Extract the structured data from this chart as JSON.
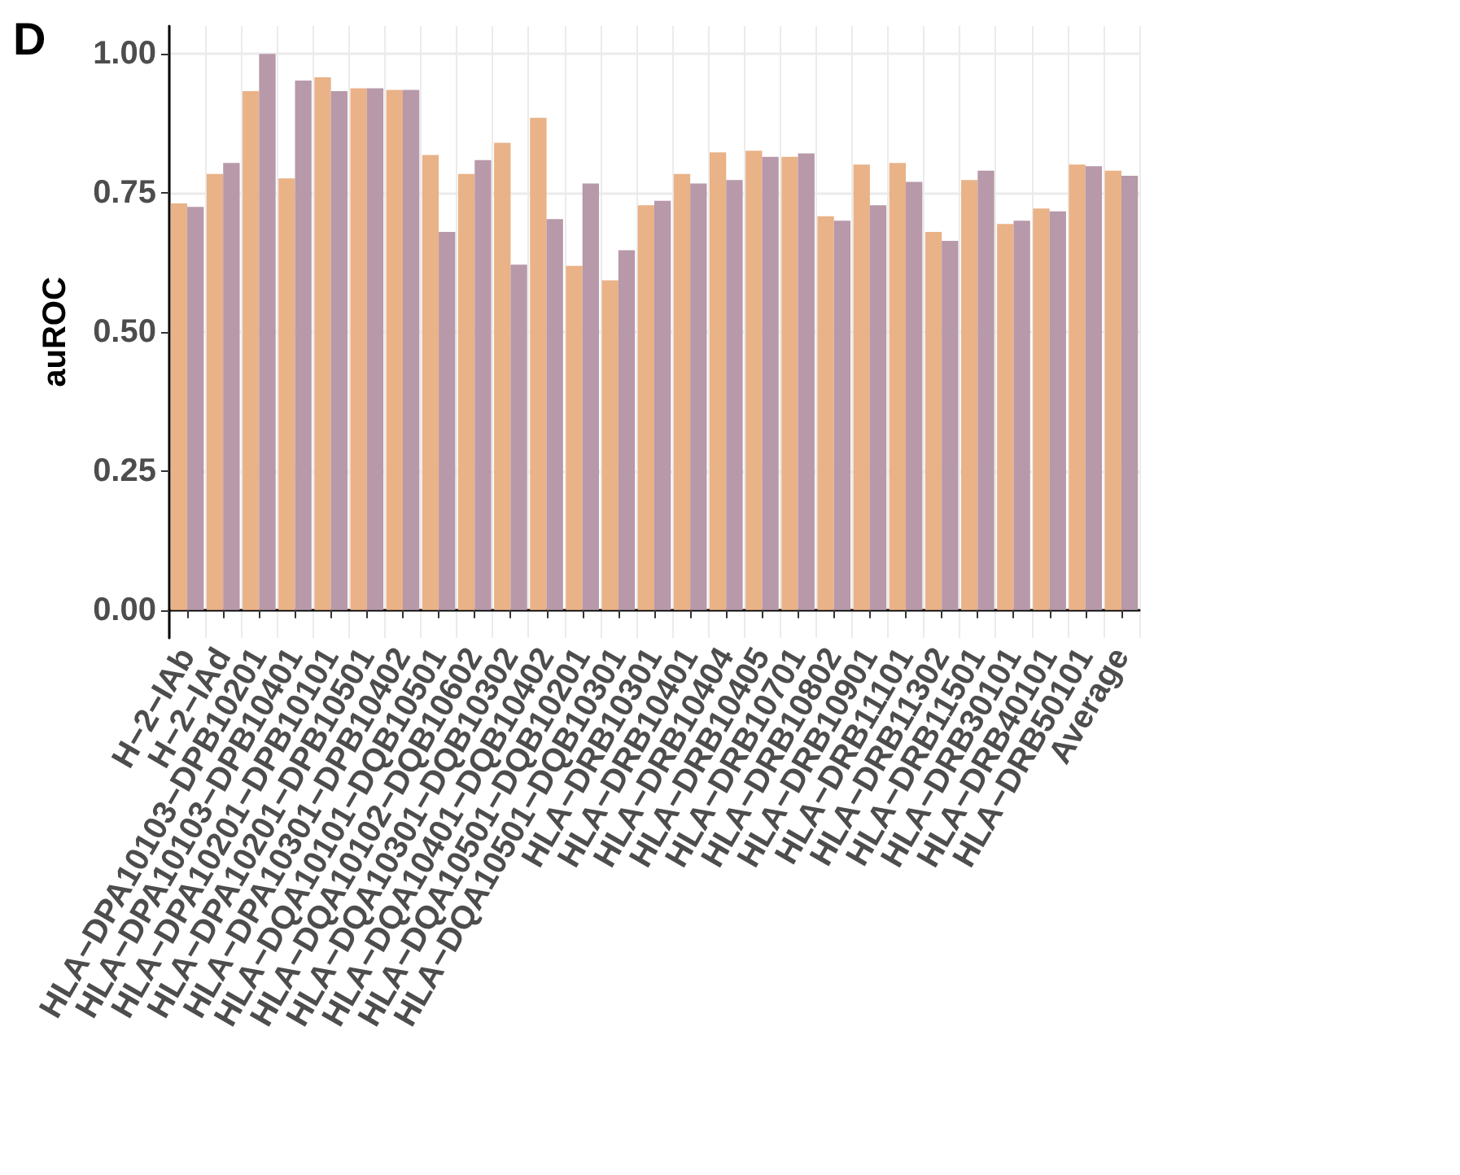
{
  "chart_data": {
    "type": "bar",
    "ylabel": "auROC",
    "annotations": [
      "D"
    ],
    "categories": [
      "H−2−IAb",
      "H−2−IAd",
      "HLA−DPA10103−DPB10201",
      "HLA−DPA10103−DPB10401",
      "HLA−DPA10201−DPB10101",
      "HLA−DPA10201−DPB10501",
      "HLA−DPA10301−DPB10402",
      "HLA−DQA10101−DQB10501",
      "HLA−DQA10102−DQB10602",
      "HLA−DQA10301−DQB10302",
      "HLA−DQA10401−DQB10402",
      "HLA−DQA10501−DQB10201",
      "HLA−DQA10501−DQB10301",
      "HLA−DRB10301",
      "HLA−DRB10401",
      "HLA−DRB10404",
      "HLA−DRB10405",
      "HLA−DRB10701",
      "HLA−DRB10802",
      "HLA−DRB10901",
      "HLA−DRB11101",
      "HLA−DRB11302",
      "HLA−DRB11501",
      "HLA−DRB30101",
      "HLA−DRB40101",
      "HLA−DRB50101",
      "Average"
    ],
    "series": [
      {
        "color": "#e9b287",
        "values": [
          0.731,
          0.784,
          0.933,
          0.776,
          0.958,
          0.938,
          0.935,
          0.818,
          0.784,
          0.84,
          0.885,
          0.619,
          0.593,
          0.728,
          0.784,
          0.823,
          0.826,
          0.815,
          0.708,
          0.801,
          0.804,
          0.68,
          0.773,
          0.694,
          0.722,
          0.801,
          0.79
        ]
      },
      {
        "color": "#b799a9",
        "values": [
          0.725,
          0.804,
          1.0,
          0.952,
          0.933,
          0.938,
          0.935,
          0.68,
          0.809,
          0.621,
          0.703,
          0.767,
          0.647,
          0.736,
          0.767,
          0.773,
          0.815,
          0.821,
          0.7,
          0.728,
          0.77,
          0.664,
          0.79,
          0.7,
          0.717,
          0.798,
          0.781
        ]
      }
    ],
    "ylim": [
      -0.05,
      1.05
    ],
    "yticks": [
      {
        "value": 0,
        "label": "0.00"
      },
      {
        "value": 0.25,
        "label": "0.25"
      },
      {
        "value": 0.5,
        "label": "0.50"
      },
      {
        "value": 0.75,
        "label": "0.75"
      },
      {
        "value": 1,
        "label": "1.00"
      }
    ],
    "grid": true
  }
}
